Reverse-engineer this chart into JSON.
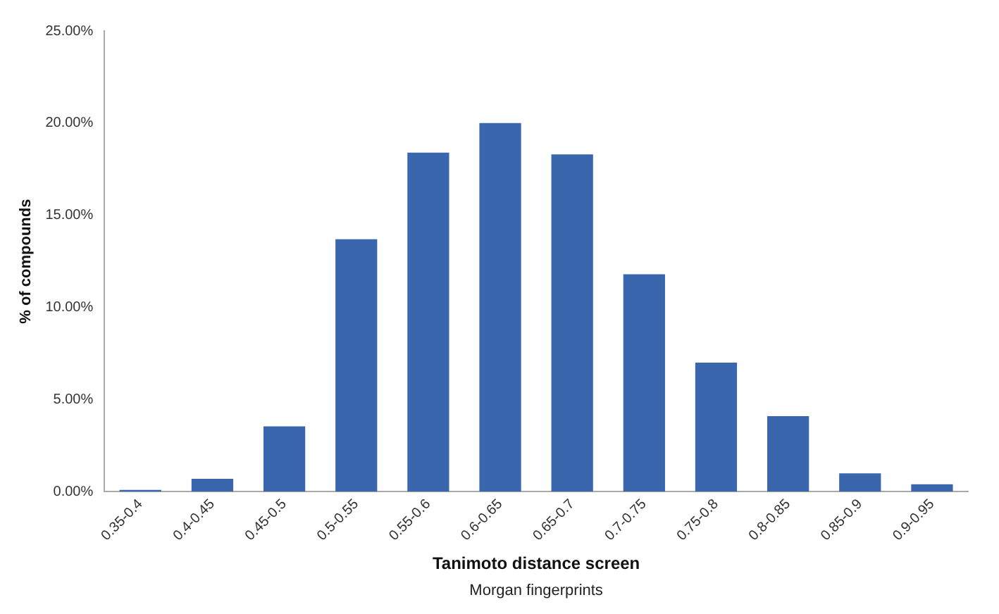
{
  "chart_data": {
    "type": "bar",
    "categories": [
      "0.35-0.4",
      "0.4-0.45",
      "0.45-0.5",
      "0.5-0.55",
      "0.55-0.6",
      "0.6-0.65",
      "0.65-0.7",
      "0.7-0.75",
      "0.75-0.8",
      "0.8-0.85",
      "0.85-0.9",
      "0.9-0.95"
    ],
    "values": [
      0.1,
      0.7,
      3.55,
      13.7,
      18.4,
      20.0,
      18.3,
      11.8,
      7.0,
      4.1,
      1.0,
      0.4
    ],
    "color": "#3a66ae",
    "xlabel": "Tanimoto distance screen",
    "ylabel": "% of compounds",
    "annotations": [
      "Morgan fingerprints"
    ],
    "ylim": [
      0,
      25
    ],
    "yticks": [
      {
        "value": 0,
        "label": "0.00%"
      },
      {
        "value": 5,
        "label": "5.00%"
      },
      {
        "value": 10,
        "label": "10.00%"
      },
      {
        "value": 15,
        "label": "15.00%"
      },
      {
        "value": 20,
        "label": "20.00%"
      },
      {
        "value": 25,
        "label": "25.00%"
      }
    ],
    "grid": false,
    "legend": false
  }
}
